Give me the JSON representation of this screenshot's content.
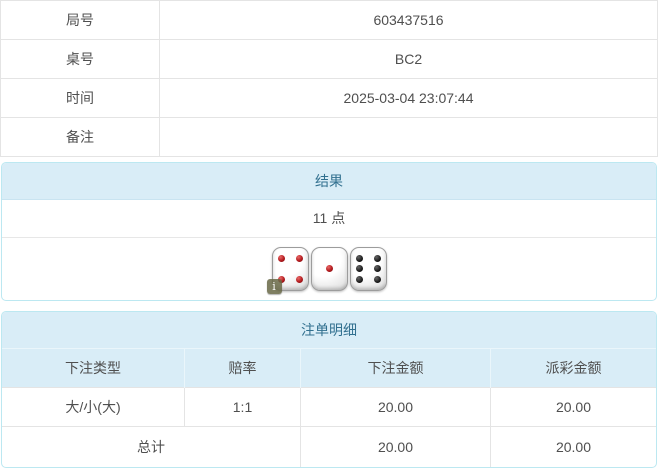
{
  "colors": {
    "panel_header_bg": "#d9edf7",
    "panel_header_text": "#31708f",
    "panel_border": "#bce8f1",
    "odds_red": "#e53a3a",
    "red_pip": "#b41b1f",
    "black_pip": "#1c1c1c"
  },
  "info_table": {
    "rows": [
      {
        "label": "局号",
        "value": "603437516"
      },
      {
        "label": "桌号",
        "value": "BC2"
      },
      {
        "label": "时间",
        "value": "2025-03-04 23:07:44"
      },
      {
        "label": "备注",
        "value": ""
      }
    ]
  },
  "result_panel": {
    "title": "结果",
    "points": "11 点",
    "dice": [
      {
        "value": 4,
        "pip_color": "red"
      },
      {
        "value": 1,
        "pip_color": "red"
      },
      {
        "value": 6,
        "pip_color": "black"
      }
    ],
    "info_badge": "i"
  },
  "bets_panel": {
    "title": "注单明细",
    "columns": [
      "下注类型",
      "赔率",
      "下注金额",
      "派彩金额"
    ],
    "rows": [
      {
        "bet_type": "大/小(大)",
        "odds": "1:1",
        "bet_amount": "20.00",
        "payout_amount": "20.00"
      }
    ],
    "total": {
      "label": "总计",
      "bet_amount": "20.00",
      "payout_amount": "20.00"
    }
  }
}
